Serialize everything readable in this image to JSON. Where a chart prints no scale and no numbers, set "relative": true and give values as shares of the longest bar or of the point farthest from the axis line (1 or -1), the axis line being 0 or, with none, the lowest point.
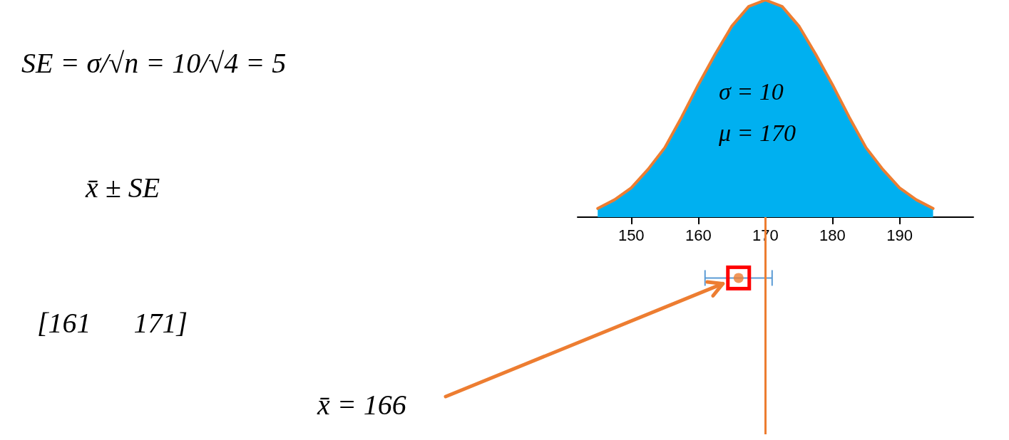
{
  "chart_data": {
    "type": "area",
    "relative": true,
    "xlim": [
      142,
      201
    ],
    "xticks": [
      150,
      160,
      170,
      180,
      190
    ],
    "series": [
      {
        "color": "#00b0f0",
        "x": [
          145,
          147.5,
          150,
          152.5,
          155,
          157.5,
          160,
          162.5,
          165,
          167.5,
          170,
          172.5,
          175,
          177.5,
          180,
          182.5,
          185,
          187.5,
          190,
          192.5,
          195
        ],
        "values": [
          0.04,
          0.08,
          0.135,
          0.22,
          0.32,
          0.46,
          0.61,
          0.75,
          0.88,
          0.97,
          1,
          0.97,
          0.88,
          0.75,
          0.61,
          0.46,
          0.32,
          0.22,
          0.135,
          0.08,
          0.04
        ]
      },
      {
        "type": "line",
        "color": "#ed7d31",
        "x": [
          145,
          147.5,
          150,
          152.5,
          155,
          157.5,
          160,
          162.5,
          165,
          167.5,
          170,
          172.5,
          175,
          177.5,
          180,
          182.5,
          185,
          187.5,
          190,
          192.5,
          195
        ],
        "values": [
          0.04,
          0.08,
          0.135,
          0.22,
          0.32,
          0.46,
          0.61,
          0.75,
          0.88,
          0.97,
          1,
          0.97,
          0.88,
          0.75,
          0.61,
          0.46,
          0.32,
          0.22,
          0.135,
          0.08,
          0.04
        ]
      },
      {
        "type": "scatter",
        "color": "#ed7d31",
        "x": [
          166
        ],
        "values": [
          -0.28
        ],
        "xerrors": [
          [
            161,
            171
          ]
        ]
      }
    ],
    "ref_lines": [
      {
        "axis": "x",
        "value": 170,
        "color": "#ed7d31"
      }
    ],
    "annotations": [
      "SE = σ/√n = 10/√4 = 5",
      "x̄ ± SE",
      "[161      171]",
      "σ = 10",
      "μ = 170",
      "x̄ = 166"
    ],
    "grid": false
  }
}
